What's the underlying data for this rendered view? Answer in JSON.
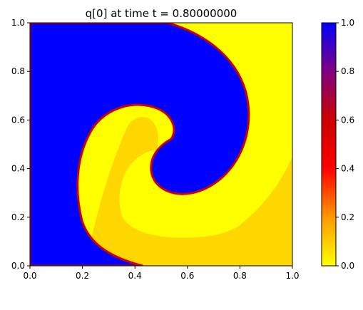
{
  "chart_data": {
    "type": "heatmap",
    "title": "q[0] at time t =     0.80000000",
    "xlabel": "",
    "ylabel": "",
    "xlim": [
      0.0,
      1.0
    ],
    "ylim": [
      0.0,
      1.0
    ],
    "x_ticks": [
      "0.0",
      "0.2",
      "0.4",
      "0.6",
      "0.8",
      "1.0"
    ],
    "y_ticks": [
      "0.0",
      "0.2",
      "0.4",
      "0.6",
      "0.8",
      "1.0"
    ],
    "colorbar": {
      "range": [
        0.0,
        1.0
      ],
      "ticks": [
        "0.0",
        "0.2",
        "0.4",
        "0.6",
        "0.8",
        "1.0"
      ],
      "colormap": [
        "#ffff00",
        "#ff9900",
        "#ff0000",
        "#990066",
        "#0000ff"
      ]
    },
    "grid": false,
    "field_description": "Two-phase swirl; high value (1.0) blue region spirals from upper right into center, low value (0.0) yellow region fills lower right and inner spiral arm, left edge region blue."
  }
}
